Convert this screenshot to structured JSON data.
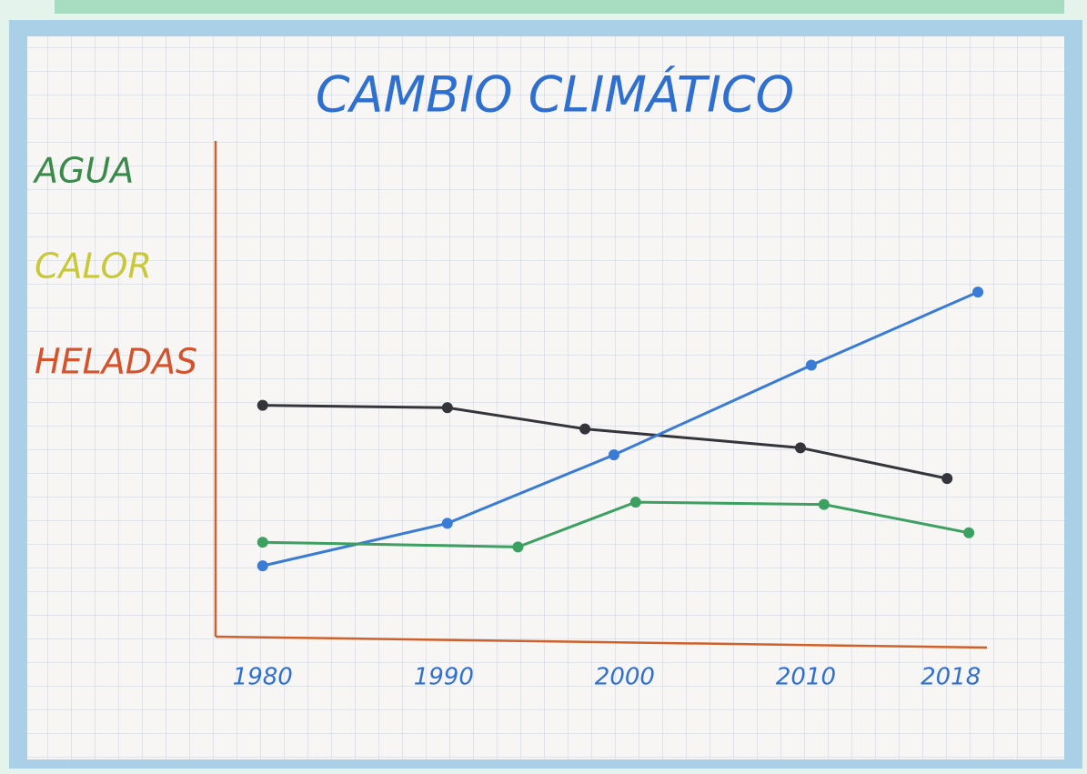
{
  "chart_data": {
    "type": "line",
    "title": "CAMBIO CLIMÁTICO",
    "legend": [
      {
        "label": "AGUA",
        "color": "#3b8a4c"
      },
      {
        "label": "CALOR",
        "color": "#c9c838"
      },
      {
        "label": "HELADAS",
        "color": "#d4522c"
      }
    ],
    "xlim": [
      1977.4,
      2020
    ],
    "xticks": [
      1980,
      1990,
      2000,
      2010,
      2018
    ],
    "ylim": [
      0,
      21
    ],
    "series": [
      {
        "color": "#33353a",
        "x": [
          1980,
          1990.2,
          1997.8,
          2009.7,
          2017.8
        ],
        "values": [
          9.8,
          9.7,
          8.8,
          8.0,
          6.7
        ]
      },
      {
        "color": "#3a7bd5",
        "x": [
          1980,
          1990.2,
          1999.4,
          2010.3,
          2019.5
        ],
        "values": [
          3.0,
          4.8,
          7.7,
          11.5,
          14.6
        ]
      },
      {
        "color": "#3ba060",
        "x": [
          1980,
          1994.1,
          2000.6,
          2011,
          2019
        ],
        "values": [
          4.0,
          3.8,
          5.7,
          5.6,
          4.4
        ]
      }
    ]
  }
}
